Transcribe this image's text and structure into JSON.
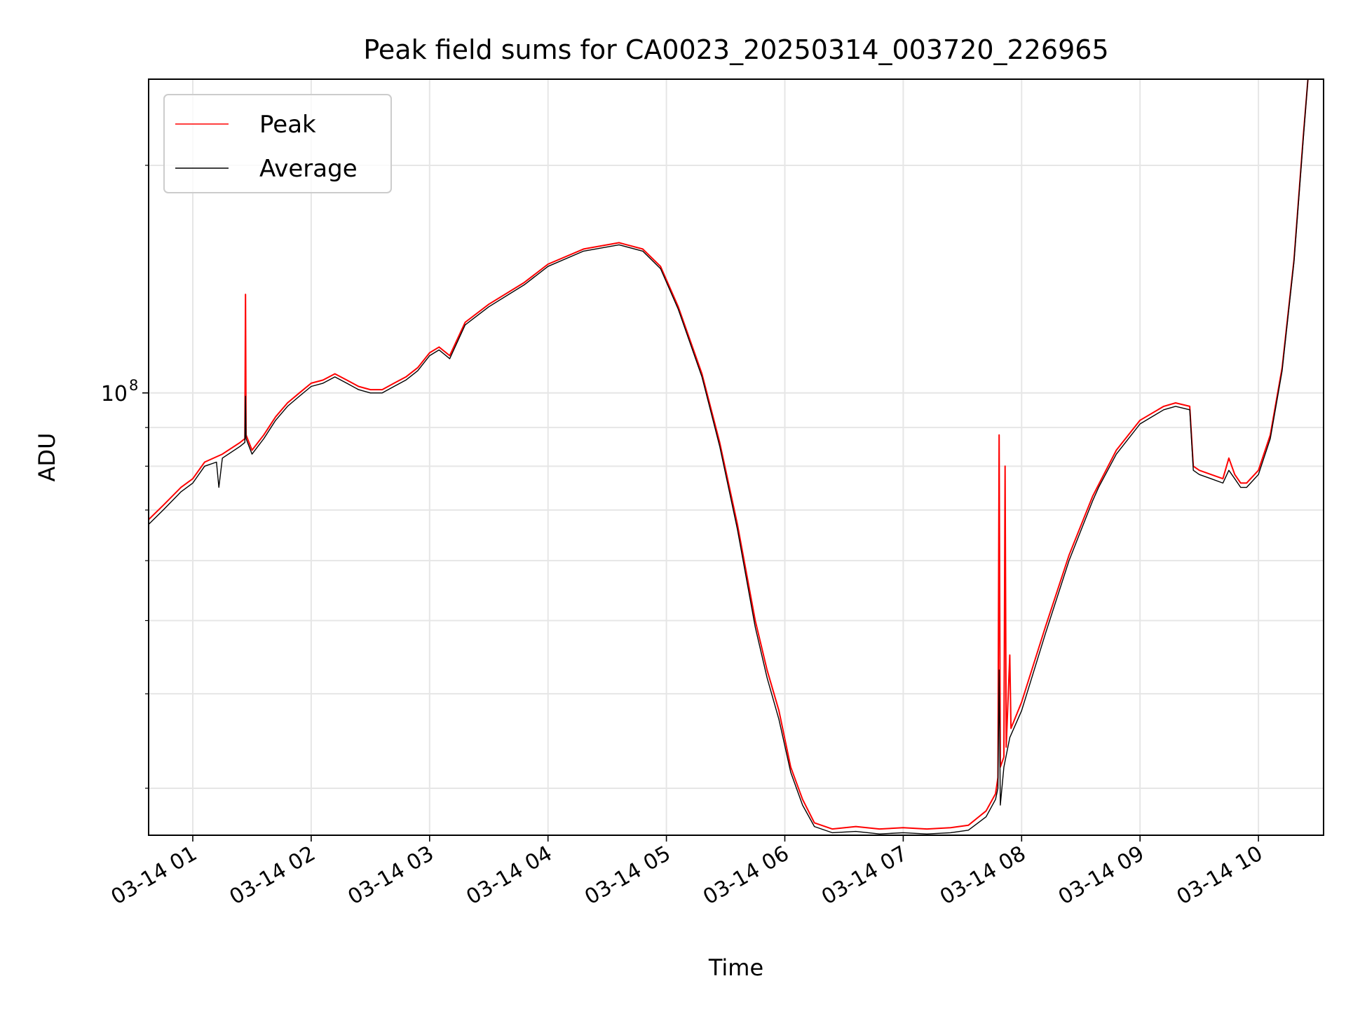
{
  "chart_data": {
    "type": "line",
    "title": "Peak field sums for CA0023_20250314_003720_226965",
    "xlabel": "Time",
    "ylabel": "ADU",
    "yscale": "log",
    "grid": true,
    "legend_position": "top-left",
    "x_unit": "hours since 2025-03-14 00:00",
    "x_ticks": [
      1,
      2,
      3,
      4,
      5,
      6,
      7,
      8,
      9,
      10
    ],
    "x_tick_labels": [
      "03-14 01",
      "03-14 02",
      "03-14 03",
      "03-14 04",
      "03-14 05",
      "03-14 06",
      "03-14 07",
      "03-14 08",
      "03-14 09",
      "03-14 10"
    ],
    "xlim": [
      0.627,
      10.55
    ],
    "ylim": [
      26000000,
      260000000
    ],
    "y_major_ticks": [
      100000000
    ],
    "y_major_tick_labels": [
      "10"
    ],
    "y_major_tick_exponents": [
      "8"
    ],
    "y_minor_ticks": [
      30000000,
      40000000,
      50000000,
      60000000,
      70000000,
      80000000,
      90000000,
      200000000
    ],
    "series": [
      {
        "name": "Peak",
        "color": "#ff0000",
        "points": [
          [
            0.627,
            68000000
          ],
          [
            0.75,
            71000000
          ],
          [
            0.9,
            75000000
          ],
          [
            1.0,
            77000000
          ],
          [
            1.1,
            81000000
          ],
          [
            1.25,
            83000000
          ],
          [
            1.4,
            86000000
          ],
          [
            1.44,
            87000000
          ],
          [
            1.445,
            135000000
          ],
          [
            1.45,
            88000000
          ],
          [
            1.5,
            84000000
          ],
          [
            1.6,
            88000000
          ],
          [
            1.7,
            93000000
          ],
          [
            1.8,
            97000000
          ],
          [
            1.9,
            100000000
          ],
          [
            2.0,
            103000000
          ],
          [
            2.1,
            104000000
          ],
          [
            2.2,
            106000000
          ],
          [
            2.3,
            104000000
          ],
          [
            2.4,
            102000000
          ],
          [
            2.5,
            101000000
          ],
          [
            2.6,
            101000000
          ],
          [
            2.7,
            103000000
          ],
          [
            2.8,
            105000000
          ],
          [
            2.9,
            108000000
          ],
          [
            3.0,
            113000000
          ],
          [
            3.08,
            115000000
          ],
          [
            3.17,
            112000000
          ],
          [
            3.3,
            124000000
          ],
          [
            3.5,
            131000000
          ],
          [
            3.8,
            140000000
          ],
          [
            4.0,
            148000000
          ],
          [
            4.3,
            155000000
          ],
          [
            4.6,
            158000000
          ],
          [
            4.8,
            155000000
          ],
          [
            4.95,
            147000000
          ],
          [
            5.1,
            130000000
          ],
          [
            5.3,
            106000000
          ],
          [
            5.45,
            86000000
          ],
          [
            5.6,
            67000000
          ],
          [
            5.75,
            50000000
          ],
          [
            5.85,
            43000000
          ],
          [
            5.95,
            38000000
          ],
          [
            6.05,
            32000000
          ],
          [
            6.15,
            29000000
          ],
          [
            6.25,
            27000000
          ],
          [
            6.4,
            26500000
          ],
          [
            6.6,
            26700000
          ],
          [
            6.8,
            26500000
          ],
          [
            7.0,
            26600000
          ],
          [
            7.2,
            26500000
          ],
          [
            7.4,
            26600000
          ],
          [
            7.55,
            26800000
          ],
          [
            7.7,
            28000000
          ],
          [
            7.78,
            29500000
          ],
          [
            7.8,
            31000000
          ],
          [
            7.81,
            88000000
          ],
          [
            7.82,
            32000000
          ],
          [
            7.85,
            33000000
          ],
          [
            7.86,
            80000000
          ],
          [
            7.87,
            34000000
          ],
          [
            7.9,
            45000000
          ],
          [
            7.91,
            36000000
          ],
          [
            8.0,
            39000000
          ],
          [
            8.2,
            49000000
          ],
          [
            8.4,
            61000000
          ],
          [
            8.6,
            73000000
          ],
          [
            8.8,
            84000000
          ],
          [
            9.0,
            92000000
          ],
          [
            9.2,
            96000000
          ],
          [
            9.3,
            97000000
          ],
          [
            9.42,
            96000000
          ],
          [
            9.45,
            80000000
          ],
          [
            9.5,
            79000000
          ],
          [
            9.6,
            78000000
          ],
          [
            9.7,
            77000000
          ],
          [
            9.75,
            82000000
          ],
          [
            9.8,
            78000000
          ],
          [
            9.85,
            76000000
          ],
          [
            9.9,
            76000000
          ],
          [
            10.0,
            79000000
          ],
          [
            10.1,
            88000000
          ],
          [
            10.2,
            108000000
          ],
          [
            10.3,
            150000000
          ],
          [
            10.38,
            220000000
          ],
          [
            10.42,
            262000000
          ],
          [
            10.55,
            262000000
          ]
        ]
      },
      {
        "name": "Average",
        "color": "#000000",
        "points": [
          [
            0.627,
            67000000
          ],
          [
            0.75,
            70000000
          ],
          [
            0.9,
            74000000
          ],
          [
            1.0,
            76000000
          ],
          [
            1.1,
            80000000
          ],
          [
            1.2,
            81000000
          ],
          [
            1.22,
            75000000
          ],
          [
            1.25,
            82000000
          ],
          [
            1.4,
            85000000
          ],
          [
            1.44,
            86000000
          ],
          [
            1.445,
            99000000
          ],
          [
            1.45,
            87000000
          ],
          [
            1.5,
            83000000
          ],
          [
            1.6,
            87000000
          ],
          [
            1.7,
            92000000
          ],
          [
            1.8,
            96000000
          ],
          [
            1.9,
            99000000
          ],
          [
            2.0,
            102000000
          ],
          [
            2.1,
            103000000
          ],
          [
            2.2,
            105000000
          ],
          [
            2.3,
            103000000
          ],
          [
            2.4,
            101000000
          ],
          [
            2.5,
            100000000
          ],
          [
            2.6,
            100000000
          ],
          [
            2.7,
            102000000
          ],
          [
            2.8,
            104000000
          ],
          [
            2.9,
            107000000
          ],
          [
            3.0,
            112000000
          ],
          [
            3.08,
            114000000
          ],
          [
            3.17,
            111000000
          ],
          [
            3.3,
            123000000
          ],
          [
            3.5,
            130000000
          ],
          [
            3.8,
            139000000
          ],
          [
            4.0,
            147000000
          ],
          [
            4.3,
            154000000
          ],
          [
            4.6,
            157000000
          ],
          [
            4.8,
            154000000
          ],
          [
            4.95,
            146000000
          ],
          [
            5.1,
            129000000
          ],
          [
            5.3,
            105000000
          ],
          [
            5.45,
            85000000
          ],
          [
            5.6,
            66000000
          ],
          [
            5.75,
            49000000
          ],
          [
            5.85,
            42000000
          ],
          [
            5.95,
            37000000
          ],
          [
            6.05,
            31500000
          ],
          [
            6.15,
            28500000
          ],
          [
            6.25,
            26700000
          ],
          [
            6.4,
            26200000
          ],
          [
            6.6,
            26300000
          ],
          [
            6.8,
            26100000
          ],
          [
            7.0,
            26200000
          ],
          [
            7.2,
            26100000
          ],
          [
            7.4,
            26200000
          ],
          [
            7.55,
            26400000
          ],
          [
            7.7,
            27500000
          ],
          [
            7.78,
            29000000
          ],
          [
            7.8,
            30000000
          ],
          [
            7.81,
            43000000
          ],
          [
            7.82,
            28500000
          ],
          [
            7.85,
            32000000
          ],
          [
            7.9,
            35000000
          ],
          [
            8.0,
            38000000
          ],
          [
            8.2,
            48000000
          ],
          [
            8.4,
            60000000
          ],
          [
            8.6,
            72000000
          ],
          [
            8.65,
            75000000
          ],
          [
            8.8,
            83000000
          ],
          [
            9.0,
            91000000
          ],
          [
            9.2,
            95000000
          ],
          [
            9.3,
            96000000
          ],
          [
            9.42,
            95000000
          ],
          [
            9.45,
            79000000
          ],
          [
            9.5,
            78000000
          ],
          [
            9.6,
            77000000
          ],
          [
            9.7,
            76000000
          ],
          [
            9.75,
            79000000
          ],
          [
            9.8,
            77000000
          ],
          [
            9.85,
            75000000
          ],
          [
            9.9,
            75000000
          ],
          [
            10.0,
            78000000
          ],
          [
            10.1,
            87000000
          ],
          [
            10.2,
            107000000
          ],
          [
            10.3,
            149000000
          ],
          [
            10.38,
            218000000
          ],
          [
            10.42,
            262000000
          ],
          [
            10.55,
            262000000
          ]
        ]
      }
    ]
  }
}
